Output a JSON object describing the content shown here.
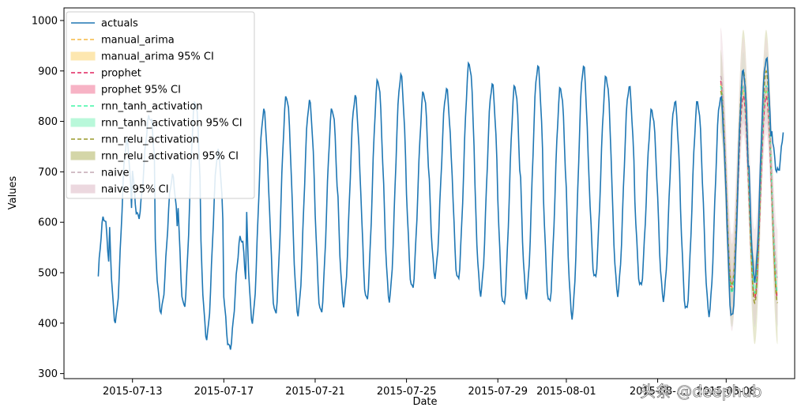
{
  "chart_data": {
    "type": "line",
    "xlabel": "Date",
    "ylabel": "Values",
    "xlim": [
      "2015-07-10",
      "2015-08-10"
    ],
    "ylim": [
      290,
      1025
    ],
    "x_ticks": [
      "2015-07-13",
      "2015-07-17",
      "2015-07-21",
      "2015-07-25",
      "2015-07-29",
      "2015-08-01",
      "2015-08-05",
      "2015-08-08"
    ],
    "x_tick_labels": [
      "2015-07-13",
      "2015-07-17",
      "2015-07-21",
      "2015-07-25",
      "2015-07-29",
      "2015-08-01",
      "2015-08-...",
      "2015-08-08"
    ],
    "y_ticks": [
      300,
      400,
      500,
      600,
      700,
      800,
      900,
      1000
    ],
    "legend_position": "top-left",
    "colors": {
      "actuals": "#1f77b4",
      "manual_arima": "#f5b942",
      "prophet": "#e0245e",
      "rnn_tanh_activation": "#3ef5a5",
      "rnn_relu_activation": "#9a9a2a",
      "naive": "#c4a8b4"
    },
    "legend": [
      {
        "label": "actuals",
        "kind": "line",
        "color": "#1f77b4"
      },
      {
        "label": "manual_arima",
        "kind": "dashed",
        "color": "#f5b942"
      },
      {
        "label": "manual_arima 95% CI",
        "kind": "band",
        "color": "#fde7b0"
      },
      {
        "label": "prophet",
        "kind": "dashed",
        "color": "#e0245e"
      },
      {
        "label": "prophet 95% CI",
        "kind": "band",
        "color": "#f7b3c5"
      },
      {
        "label": "rnn_tanh_activation",
        "kind": "dashed",
        "color": "#3ef5a5"
      },
      {
        "label": "rnn_tanh_activation 95% CI",
        "kind": "band",
        "color": "#b9f8da"
      },
      {
        "label": "rnn_relu_activation",
        "kind": "dashed",
        "color": "#9a9a2a"
      },
      {
        "label": "rnn_relu_activation 95% CI",
        "kind": "band",
        "color": "#d4d6a8"
      },
      {
        "label": "naive",
        "kind": "dashed",
        "color": "#c4a8b4"
      },
      {
        "label": "naive 95% CI",
        "kind": "band",
        "color": "#ecd8df"
      }
    ],
    "series": [
      {
        "name": "actuals",
        "daily_peaks": [
          [
            "2015-07-11",
            610
          ],
          [
            "2015-07-12",
            760
          ],
          [
            "2015-07-13",
            810
          ],
          [
            "2015-07-14",
            690
          ],
          [
            "2015-07-15",
            840
          ],
          [
            "2015-07-16",
            740
          ],
          [
            "2015-07-17",
            570
          ],
          [
            "2015-07-18",
            820
          ],
          [
            "2015-07-19",
            850
          ],
          [
            "2015-07-20",
            838
          ],
          [
            "2015-07-21",
            825
          ],
          [
            "2015-07-22",
            848
          ],
          [
            "2015-07-23",
            882
          ],
          [
            "2015-07-24",
            890
          ],
          [
            "2015-07-25",
            858
          ],
          [
            "2015-07-26",
            862
          ],
          [
            "2015-07-27",
            915
          ],
          [
            "2015-07-28",
            872
          ],
          [
            "2015-07-29",
            870
          ],
          [
            "2015-07-30",
            908
          ],
          [
            "2015-07-31",
            866
          ],
          [
            "2015-08-01",
            908
          ],
          [
            "2015-08-02",
            888
          ],
          [
            "2015-08-03",
            868
          ],
          [
            "2015-08-04",
            822
          ],
          [
            "2015-08-05",
            838
          ],
          [
            "2015-08-06",
            838
          ],
          [
            "2015-08-07",
            848
          ],
          [
            "2015-08-08",
            900
          ],
          [
            "2015-08-09",
            925
          ],
          [
            "2015-08-10",
            870
          ]
        ],
        "daily_troughs": [
          [
            "2015-07-11",
            372
          ],
          [
            "2015-07-12",
            405
          ],
          [
            "2015-07-13",
            610
          ],
          [
            "2015-07-14",
            425
          ],
          [
            "2015-07-15",
            432
          ],
          [
            "2015-07-16",
            372
          ],
          [
            "2015-07-17",
            350
          ],
          [
            "2015-07-18",
            405
          ],
          [
            "2015-07-19",
            418
          ],
          [
            "2015-07-20",
            420
          ],
          [
            "2015-07-21",
            420
          ],
          [
            "2015-07-22",
            438
          ],
          [
            "2015-07-23",
            445
          ],
          [
            "2015-07-24",
            448
          ],
          [
            "2015-07-25",
            468
          ],
          [
            "2015-07-26",
            495
          ],
          [
            "2015-07-27",
            485
          ],
          [
            "2015-07-28",
            460
          ],
          [
            "2015-07-29",
            435
          ],
          [
            "2015-07-30",
            455
          ],
          [
            "2015-07-31",
            440
          ],
          [
            "2015-08-01",
            415
          ],
          [
            "2015-08-02",
            488
          ],
          [
            "2015-08-03",
            460
          ],
          [
            "2015-08-04",
            472
          ],
          [
            "2015-08-05",
            450
          ],
          [
            "2015-08-06",
            425
          ],
          [
            "2015-08-07",
            420
          ],
          [
            "2015-08-08",
            410
          ],
          [
            "2015-08-09",
            488
          ],
          [
            "2015-08-10",
            700
          ]
        ]
      },
      {
        "name": "manual_arima",
        "forecast_peaks": [
          875,
          860
        ],
        "forecast_troughs": [
          470,
          455
        ]
      },
      {
        "name": "prophet",
        "forecast_peaks": [
          880,
          850
        ],
        "forecast_troughs": [
          465,
          450
        ]
      },
      {
        "name": "rnn_tanh_activation",
        "forecast_peaks": [
          870,
          870
        ],
        "forecast_troughs": [
          460,
          460
        ]
      },
      {
        "name": "rnn_relu_activation",
        "forecast_peaks": [
          860,
          900
        ],
        "forecast_troughs": [
          475,
          440
        ]
      },
      {
        "name": "naive",
        "forecast_peaks": [
          890,
          870
        ],
        "forecast_troughs": [
          480,
          490
        ]
      }
    ],
    "forecast_window": [
      "2015-08-07",
      "2015-08-10"
    ],
    "ci_ranges": {
      "upper_max": 990,
      "lower_min": 322
    }
  },
  "watermark": "头条 @deephub"
}
